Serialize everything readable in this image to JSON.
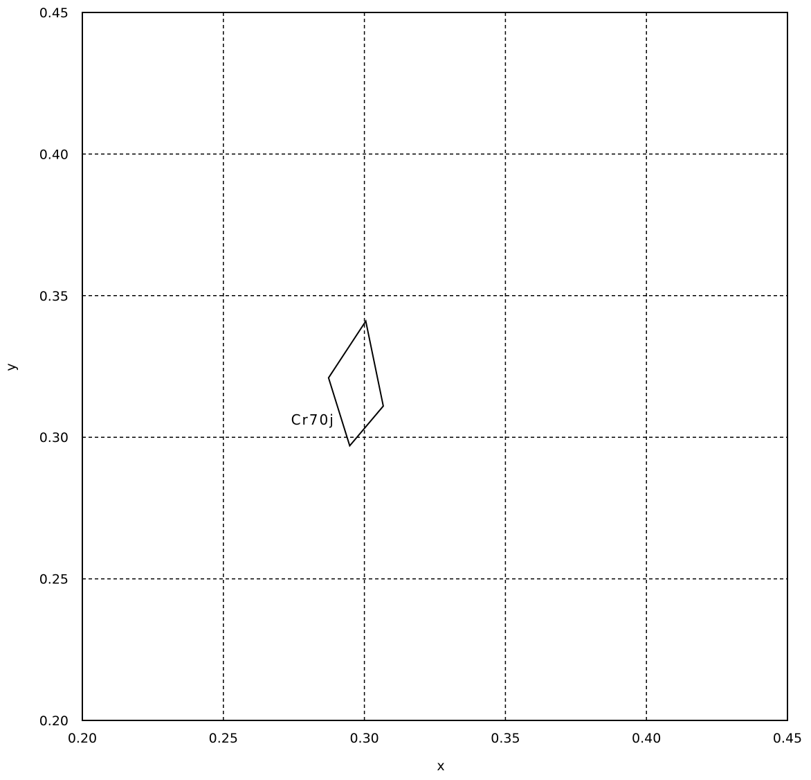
{
  "chart_data": {
    "type": "line",
    "xlabel": "x",
    "ylabel": "y",
    "xlim": [
      0.2,
      0.45
    ],
    "ylim": [
      0.2,
      0.45
    ],
    "x_ticks": [
      0.2,
      0.25,
      0.3,
      0.35,
      0.4,
      0.45
    ],
    "y_ticks": [
      0.2,
      0.25,
      0.3,
      0.35,
      0.4,
      0.45
    ],
    "x_tick_labels": [
      "0.20",
      "0.25",
      "0.30",
      "0.35",
      "0.40",
      "0.45"
    ],
    "y_tick_labels": [
      "0.20",
      "0.25",
      "0.30",
      "0.35",
      "0.40",
      "0.45"
    ],
    "grid": true,
    "grid_style": "dashed",
    "series": [
      {
        "closed": true,
        "points": [
          [
            0.3005,
            0.341
          ],
          [
            0.3067,
            0.311
          ],
          [
            0.2948,
            0.297
          ],
          [
            0.2873,
            0.321
          ]
        ],
        "color": "#000000"
      }
    ],
    "annotations": [
      {
        "text": "Cr70j",
        "x": 0.2895,
        "y": 0.3045
      }
    ]
  }
}
